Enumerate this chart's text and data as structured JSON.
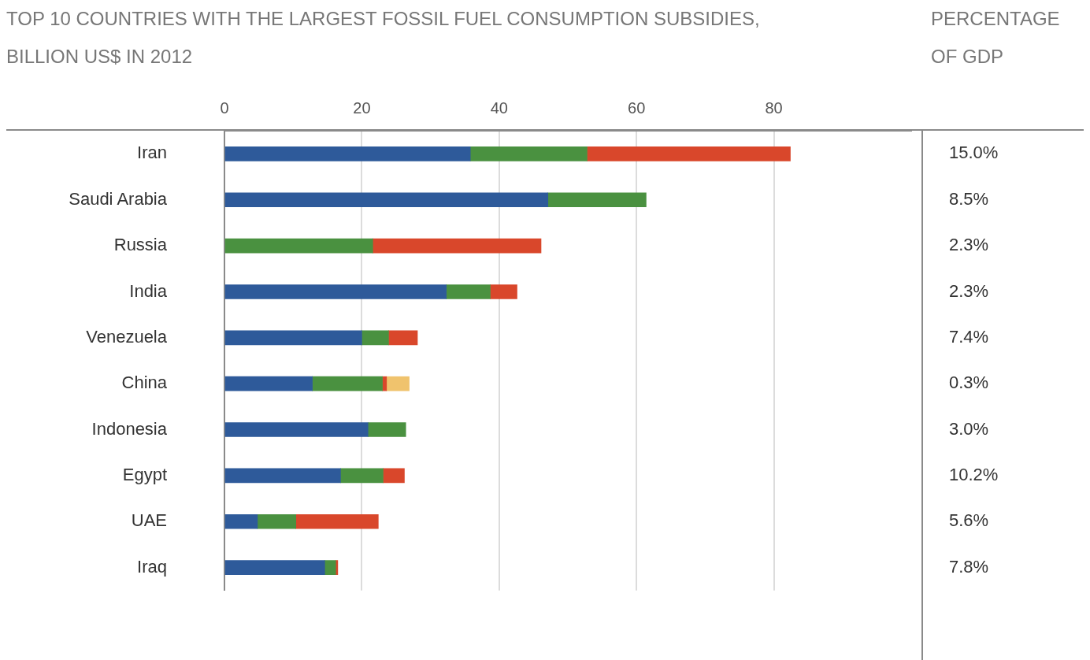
{
  "chart_data": {
    "type": "bar",
    "orientation": "horizontal",
    "stacked": true,
    "title": "TOP 10 COUNTRIES WITH THE LARGEST FOSSIL FUEL CONSUMPTION SUBSIDIES, BILLION US$ IN 2012",
    "categories": [
      "Iran",
      "Saudi Arabia",
      "Russia",
      "India",
      "Venezuela",
      "China",
      "Indonesia",
      "Egypt",
      "UAE",
      "Iraq"
    ],
    "series": [
      {
        "color": "#2e5a9a",
        "values": [
          35.8,
          47.1,
          null,
          32.3,
          20.0,
          12.8,
          20.9,
          16.9,
          4.8,
          14.6
        ]
      },
      {
        "color": "#4a9140",
        "values": [
          17.0,
          14.3,
          21.6,
          6.4,
          3.9,
          10.2,
          5.5,
          6.2,
          5.6,
          1.6
        ]
      },
      {
        "color": "#d9472b",
        "values": [
          29.6,
          null,
          24.5,
          3.9,
          4.2,
          0.6,
          null,
          3.1,
          12.0,
          0.3
        ]
      },
      {
        "color": "#f0c36d",
        "values": [
          null,
          null,
          null,
          null,
          null,
          3.3,
          null,
          null,
          null,
          null
        ]
      }
    ],
    "xlim": [
      0,
      100
    ],
    "xticks": [
      0,
      20,
      40,
      60,
      80
    ],
    "grid": "x",
    "legend": false,
    "annotations": [
      "PERCENTAGE OF GDP",
      "15.0%",
      "8.5%",
      "2.3%",
      "2.3%",
      "7.4%",
      "0.3%",
      "3.0%",
      "10.2%",
      "5.6%",
      "7.8%"
    ]
  }
}
